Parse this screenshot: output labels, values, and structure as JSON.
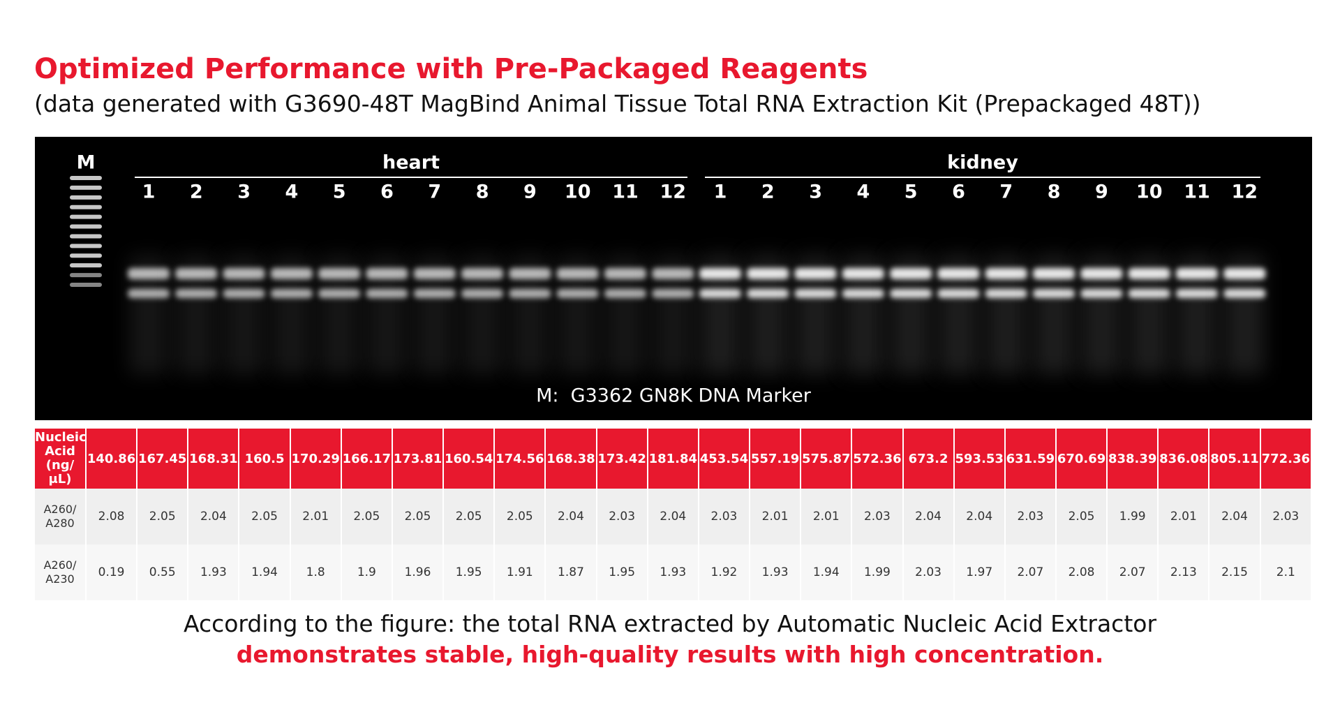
{
  "title": "Optimized Performance with Pre-Packaged Reagents",
  "subtitle": "(data generated with G3690-48T MagBind Animal Tissue Total RNA Extraction Kit (Prepackaged 48T))",
  "gel": {
    "marker": "M",
    "groups": [
      {
        "name": "heart",
        "lanes": [
          "1",
          "2",
          "3",
          "4",
          "5",
          "6",
          "7",
          "8",
          "9",
          "10",
          "11",
          "12"
        ]
      },
      {
        "name": "kidney",
        "lanes": [
          "1",
          "2",
          "3",
          "4",
          "5",
          "6",
          "7",
          "8",
          "9",
          "10",
          "11",
          "12"
        ]
      }
    ],
    "caption": "M:  G3362 GN8K DNA Marker"
  },
  "table": {
    "rows": [
      {
        "label": [
          "Nucleic",
          "Acid",
          "(ng/μL)"
        ],
        "values": [
          "140.86",
          "167.45",
          "168.31",
          "160.5",
          "170.29",
          "166.17",
          "173.81",
          "160.54",
          "174.56",
          "168.38",
          "173.42",
          "181.84",
          "453.54",
          "557.19",
          "575.87",
          "572.36",
          "673.2",
          "593.53",
          "631.59",
          "670.69",
          "838.39",
          "836.08",
          "805.11",
          "772.36"
        ]
      },
      {
        "label": [
          "A260/",
          "A280"
        ],
        "values": [
          "2.08",
          "2.05",
          "2.04",
          "2.05",
          "2.01",
          "2.05",
          "2.05",
          "2.05",
          "2.05",
          "2.04",
          "2.03",
          "2.04",
          "2.03",
          "2.01",
          "2.01",
          "2.03",
          "2.04",
          "2.04",
          "2.03",
          "2.05",
          "1.99",
          "2.01",
          "2.04",
          "2.03"
        ]
      },
      {
        "label": [
          "A260/",
          "A230"
        ],
        "values": [
          "0.19",
          "0.55",
          "1.93",
          "1.94",
          "1.8",
          "1.9",
          "1.96",
          "1.95",
          "1.91",
          "1.87",
          "1.95",
          "1.93",
          "1.92",
          "1.93",
          "1.94",
          "1.99",
          "2.03",
          "1.97",
          "2.07",
          "2.08",
          "2.07",
          "2.13",
          "2.15",
          "2.1"
        ]
      }
    ]
  },
  "conclusion": {
    "line1": "According to the figure: the total RNA extracted by Automatic Nucleic Acid Extractor",
    "line2": "demonstrates stable, high-quality results with high concentration."
  }
}
